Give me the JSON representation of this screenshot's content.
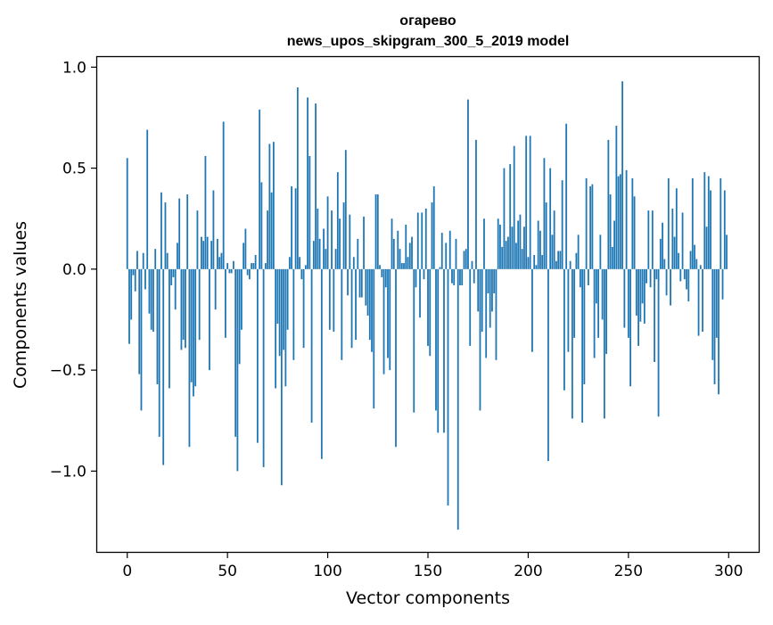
{
  "chart_data": {
    "type": "bar",
    "title_line1": "огарево",
    "title_line2": "news_upos_skipgram_300_5_2019 model",
    "xlabel": "Vector components",
    "ylabel": "Components values",
    "xlim": [
      -15,
      315
    ],
    "ylim": [
      -1.4,
      1.05
    ],
    "x_ticks": [
      0,
      50,
      100,
      150,
      200,
      250,
      300
    ],
    "x_tick_labels": [
      "0",
      "50",
      "100",
      "150",
      "200",
      "250",
      "300"
    ],
    "y_ticks": [
      1.0,
      0.5,
      0.0,
      -0.5,
      -1.0
    ],
    "y_tick_labels": [
      "1.0",
      "0.5",
      "0.0",
      "−0.5",
      "−1.0"
    ],
    "bar_color": "#1f77b4",
    "grid": false,
    "values": [
      0.55,
      -0.37,
      -0.25,
      -0.03,
      -0.11,
      0.09,
      -0.52,
      -0.7,
      0.08,
      -0.1,
      0.69,
      -0.22,
      -0.3,
      -0.31,
      0.1,
      -0.57,
      -0.83,
      0.38,
      -0.97,
      0.33,
      0.08,
      -0.59,
      -0.08,
      -0.04,
      -0.2,
      0.13,
      0.35,
      -0.4,
      -0.35,
      -0.39,
      0.37,
      -0.88,
      -0.56,
      -0.63,
      -0.58,
      0.29,
      -0.35,
      0.16,
      0.14,
      0.56,
      0.16,
      -0.5,
      0.14,
      0.39,
      -0.2,
      0.15,
      0.06,
      0.08,
      0.73,
      -0.34,
      0.03,
      -0.02,
      -0.02,
      0.04,
      -0.83,
      -1.0,
      -0.47,
      -0.3,
      0.13,
      0.2,
      -0.03,
      -0.05,
      0.03,
      0.03,
      0.07,
      -0.86,
      0.79,
      0.43,
      -0.98,
      0.03,
      0.29,
      0.62,
      0.38,
      0.63,
      -0.59,
      -0.27,
      -0.43,
      -1.07,
      -0.4,
      -0.58,
      -0.3,
      0.06,
      0.41,
      -0.45,
      0.4,
      0.9,
      0.06,
      -0.05,
      -0.39,
      0.02,
      0.85,
      0.56,
      -0.76,
      0.14,
      0.82,
      0.3,
      0.15,
      -0.94,
      0.2,
      0.1,
      0.36,
      -0.3,
      0.29,
      -0.31,
      0.1,
      0.48,
      0.25,
      -0.45,
      0.33,
      0.59,
      -0.13,
      0.27,
      -0.39,
      0.06,
      -0.35,
      0.15,
      -0.14,
      -0.14,
      0.26,
      -0.18,
      -0.23,
      -0.35,
      -0.41,
      -0.69,
      0.37,
      0.37,
      0.02,
      -0.04,
      -0.52,
      -0.09,
      -0.44,
      -0.5,
      0.25,
      0.15,
      -0.88,
      0.19,
      0.1,
      0.03,
      0.03,
      0.22,
      0.06,
      0.13,
      0.16,
      -0.71,
      -0.09,
      0.28,
      -0.24,
      0.28,
      -0.05,
      0.3,
      -0.38,
      -0.43,
      0.33,
      0.41,
      -0.7,
      -0.81,
      0.01,
      0.18,
      -0.81,
      0.13,
      -1.17,
      0.19,
      -0.07,
      -0.08,
      0.15,
      -1.29,
      -0.08,
      -0.08,
      0.09,
      0.1,
      0.84,
      -0.38,
      0.04,
      -0.07,
      0.64,
      -0.21,
      -0.7,
      -0.31,
      0.25,
      -0.44,
      -0.12,
      -0.29,
      -0.21,
      -0.12,
      -0.45,
      0.25,
      0.22,
      0.11,
      0.5,
      0.14,
      0.16,
      0.52,
      0.21,
      0.61,
      0.13,
      0.24,
      0.27,
      0.1,
      0.21,
      0.66,
      0.06,
      0.66,
      -0.41,
      0.07,
      0.02,
      0.24,
      0.19,
      0.07,
      0.55,
      0.33,
      -0.95,
      0.5,
      0.17,
      0.29,
      0.04,
      0.09,
      0.09,
      0.44,
      -0.6,
      0.72,
      -0.41,
      0.04,
      -0.74,
      -0.34,
      0.08,
      0.17,
      -0.09,
      -0.76,
      -0.57,
      0.45,
      -0.08,
      0.41,
      0.42,
      -0.44,
      -0.17,
      -0.34,
      0.17,
      -0.25,
      -0.74,
      -0.42,
      0.64,
      0.37,
      0.11,
      0.24,
      0.71,
      0.46,
      0.47,
      0.93,
      -0.29,
      0.49,
      -0.34,
      -0.58,
      0.45,
      0.36,
      -0.23,
      -0.38,
      -0.26,
      -0.17,
      -0.27,
      -0.07,
      0.29,
      -0.09,
      0.29,
      -0.46,
      -0.05,
      -0.73,
      0.15,
      0.23,
      0.05,
      -0.13,
      0.45,
      -0.18,
      0.3,
      0.16,
      0.4,
      0.08,
      -0.06,
      0.28,
      -0.05,
      -0.1,
      -0.16,
      0.09,
      0.45,
      0.12,
      0.05,
      -0.33,
      0.02,
      -0.31,
      0.48,
      0.21,
      0.46,
      0.39,
      -0.45,
      -0.57,
      -0.34,
      -0.62,
      0.45,
      -0.15,
      0.39,
      0.17
    ]
  }
}
